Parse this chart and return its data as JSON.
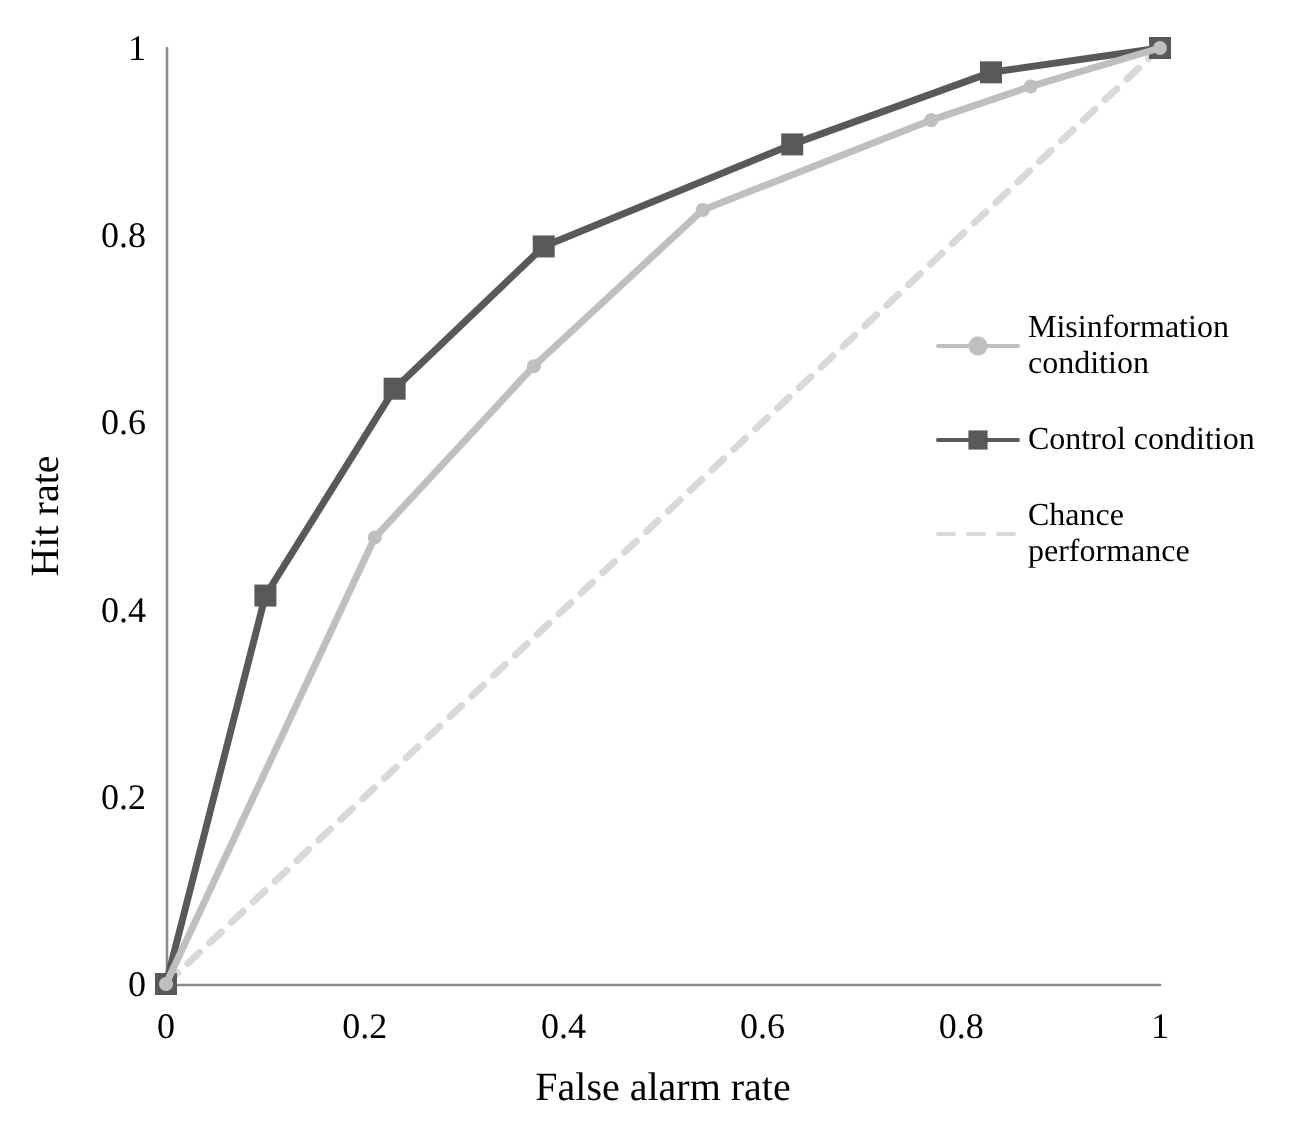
{
  "chart_data": {
    "type": "line",
    "xlabel": "False alarm rate",
    "ylabel": "Hit rate",
    "xlim": [
      0,
      1
    ],
    "xticks": [
      0,
      0.2,
      0.4,
      0.6,
      0.8,
      1
    ],
    "ylim": [
      0,
      1
    ],
    "yticks": [
      0,
      0.2,
      0.4,
      0.6,
      0.8,
      1
    ],
    "grid": false,
    "legend": "right",
    "series": [
      {
        "name": "Misinformation condition",
        "color": "#bfbfbf",
        "marker": "circle",
        "line_style": "solid",
        "x": [
          0,
          0.21,
          0.37,
          0.54,
          0.77,
          0.87,
          1
        ],
        "values": [
          0,
          0.477,
          0.66,
          0.827,
          0.923,
          0.959,
          1
        ]
      },
      {
        "name": "Control condition",
        "color": "#595959",
        "marker": "square",
        "line_style": "solid",
        "x": [
          0,
          0.1,
          0.23,
          0.38,
          0.63,
          0.83,
          1
        ],
        "values": [
          0,
          0.415,
          0.636,
          0.788,
          0.897,
          0.974,
          1
        ]
      },
      {
        "name": "Chance performance",
        "color": "#d9d9d9",
        "marker": "none",
        "line_style": "dashed",
        "x": [
          0,
          1
        ],
        "values": [
          0,
          1
        ]
      }
    ]
  }
}
